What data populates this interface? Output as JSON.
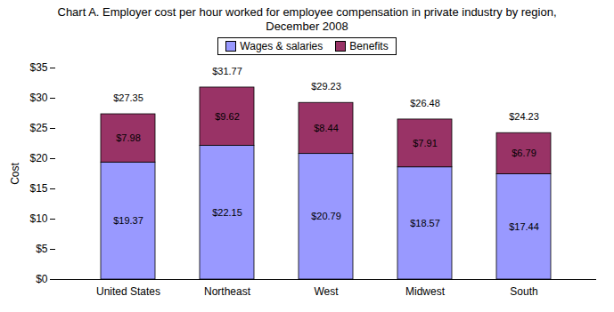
{
  "chart_data": {
    "type": "bar",
    "title": "Chart A. Employer cost per hour worked for employee compensation in private industry by region, December 2008",
    "y_label": "Cost",
    "categories": [
      "United States",
      "Northeast",
      "West",
      "Midwest",
      "South"
    ],
    "series": [
      {
        "name": "Wages & salaries",
        "color": "#9999ff",
        "values": [
          19.37,
          22.15,
          20.79,
          18.57,
          17.44
        ],
        "value_labels": [
          "$19.37",
          "$22.15",
          "$20.79",
          "$18.57",
          "$17.44"
        ]
      },
      {
        "name": "Benefits",
        "color": "#993366",
        "values": [
          7.98,
          9.62,
          8.44,
          7.91,
          6.79
        ],
        "value_labels": [
          "$7.98",
          "$9.62",
          "$8.44",
          "$7.91",
          "$6.79"
        ]
      }
    ],
    "totals": [
      27.35,
      31.77,
      29.23,
      26.48,
      24.23
    ],
    "total_labels": [
      "$27.35",
      "$31.77",
      "$29.23",
      "$26.48",
      "$24.23"
    ],
    "stacked": true,
    "data_labels": true,
    "legend": "top",
    "grid": false,
    "ylim": [
      0,
      35
    ],
    "yticks": [
      {
        "value": 0,
        "label": "$0"
      },
      {
        "value": 5,
        "label": "$5"
      },
      {
        "value": 10,
        "label": "$10"
      },
      {
        "value": 15,
        "label": "$15"
      },
      {
        "value": 20,
        "label": "$20"
      },
      {
        "value": 25,
        "label": "$25"
      },
      {
        "value": 30,
        "label": "$30"
      },
      {
        "value": 35,
        "label": "$35"
      }
    ]
  }
}
